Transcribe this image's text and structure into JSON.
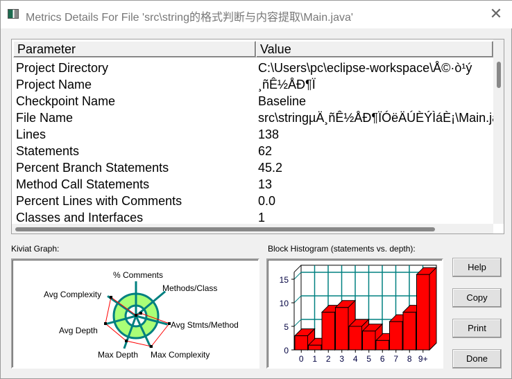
{
  "window": {
    "title": "Metrics Details For File 'src\\string的格式判断与内容提取\\Main.java'",
    "close_icon": "close-icon"
  },
  "table": {
    "columns": [
      "Parameter",
      "Value"
    ],
    "rows": [
      {
        "parameter": "Project Directory",
        "value": "C:\\Users\\pc\\eclipse-workspace\\Å©·ò¹ý"
      },
      {
        "parameter": "Project Name",
        "value": "¸ñÊ½ÅÐ¶Ï"
      },
      {
        "parameter": "Checkpoint Name",
        "value": "Baseline"
      },
      {
        "parameter": "File Name",
        "value": "src\\stringµÄ¸ñÊ½ÅÐ¶ÏÓëÄÚÈÝÌáÈ¡\\Main.java"
      },
      {
        "parameter": "Lines",
        "value": "138"
      },
      {
        "parameter": "Statements",
        "value": "62"
      },
      {
        "parameter": "Percent Branch Statements",
        "value": "45.2"
      },
      {
        "parameter": "Method Call Statements",
        "value": "13"
      },
      {
        "parameter": "Percent Lines with Comments",
        "value": "0.0"
      },
      {
        "parameter": "Classes and Interfaces",
        "value": "1"
      }
    ]
  },
  "kiviat": {
    "label": "Kiviat Graph:",
    "axes": [
      "% Comments",
      "Methods/Class",
      "Avg Stmts/Method",
      "Max Complexity",
      "Max Depth",
      "Avg Depth",
      "Avg Complexity"
    ],
    "colors": {
      "ring": "#aaff77",
      "spoke": "#008080",
      "polygon": "#ff0000"
    }
  },
  "histogram": {
    "label": "Block Histogram (statements vs. depth):"
  },
  "chart_data": {
    "type": "bar",
    "categories": [
      "0",
      "1",
      "2",
      "3",
      "4",
      "5",
      "6",
      "7",
      "8",
      "9+"
    ],
    "values": [
      3,
      1,
      8,
      9,
      5,
      4,
      2,
      6,
      8,
      16
    ],
    "yticks": [
      0,
      5,
      10,
      15
    ],
    "ylim": [
      0,
      16
    ],
    "grid": true,
    "bar_color": "#ff0000",
    "grid_color": "#008080"
  },
  "buttons": {
    "help": "Help",
    "copy": "Copy",
    "print": "Print",
    "done": "Done"
  }
}
